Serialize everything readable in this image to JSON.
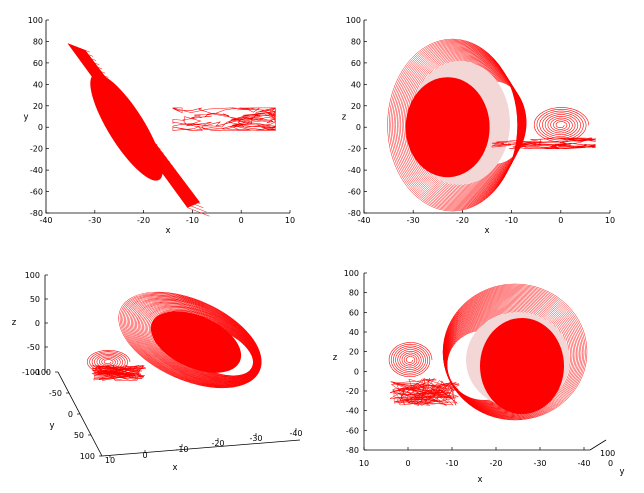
{
  "chart_data": [
    {
      "type": "line",
      "title": "",
      "xlabel": "x",
      "ylabel": "y",
      "xlim": [
        -40,
        10
      ],
      "ylim": [
        -80,
        100
      ],
      "xticks": [
        "-40",
        "-30",
        "-20",
        "-10",
        "0",
        "10"
      ],
      "yticks": [
        "-80",
        "-60",
        "-40",
        "-20",
        "0",
        "20",
        "40",
        "60",
        "80",
        "100"
      ],
      "series_color": "#ff0000",
      "grid": false,
      "features": {
        "disk_band": {
          "from": [
            -35.5,
            78
          ],
          "to": [
            -11,
            -75
          ]
        },
        "filled_core": {
          "from": [
            -30,
            48
          ],
          "to": [
            -17,
            -50
          ]
        },
        "attractor_trace": {
          "x_range": [
            -14,
            7
          ],
          "y_range": [
            -3,
            18
          ]
        }
      }
    },
    {
      "type": "line",
      "title": "",
      "xlabel": "x",
      "ylabel": "z",
      "xlim": [
        -40,
        10
      ],
      "ylim": [
        -80,
        100
      ],
      "xticks": [
        "-40",
        "-30",
        "-20",
        "-10",
        "0",
        "10"
      ],
      "yticks": [
        "-80",
        "-60",
        "-40",
        "-20",
        "0",
        "20",
        "40",
        "60",
        "80",
        "100"
      ],
      "series_color": "#ff0000",
      "grid": false,
      "features": {
        "outer_ellipse": {
          "center": [
            -22,
            2
          ],
          "rx": 14,
          "ry": 84
        },
        "filled_core": {
          "center": [
            -23,
            0
          ],
          "rx": 8.5,
          "ry": 50
        },
        "spiral": {
          "center": [
            0,
            2
          ],
          "r_x": 6.5,
          "r_y": 15
        },
        "attractor_trace": {
          "x_range": [
            -14,
            7
          ],
          "z_range": [
            -20,
            -10
          ]
        }
      }
    },
    {
      "type": "line",
      "title": "",
      "xlabel": "x",
      "ylabel": "y",
      "zlabel": "z",
      "projection": "3d",
      "xticks": [
        "10",
        "0",
        "-10",
        "-20",
        "-30",
        "-40"
      ],
      "yticks": [
        "-100",
        "-50",
        "0",
        "50",
        "100"
      ],
      "zticks": [
        "100",
        "50",
        "0",
        "-50",
        "-100"
      ],
      "series_color": "#ff0000",
      "grid": false
    },
    {
      "type": "line",
      "title": "",
      "xlabel": "x",
      "ylabel": "y",
      "zlabel": "z",
      "projection": "3d",
      "xticks": [
        "10",
        "0",
        "-10",
        "-20",
        "-30",
        "-40"
      ],
      "yticks": [
        "100",
        "0"
      ],
      "zticks": [
        "-80",
        "-60",
        "-40",
        "-20",
        "0",
        "20",
        "40",
        "60",
        "80",
        "100"
      ],
      "series_color": "#ff0000",
      "grid": false
    }
  ]
}
